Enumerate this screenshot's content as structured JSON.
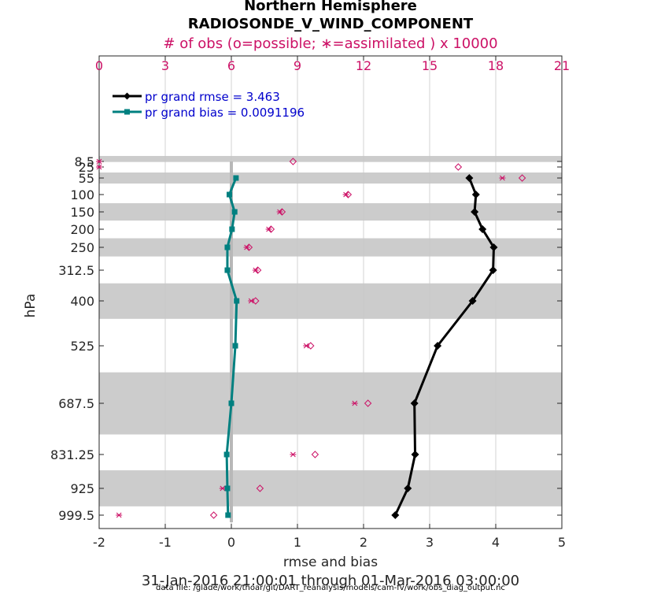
{
  "title": "Northern Hemisphere",
  "subtitle": "RADIOSONDE_V_WIND_COMPONENT",
  "top_axis_label": "# of obs (o=possible; ∗=assimilated ) x 10000",
  "xlabel": "rmse and bias",
  "ylabel": "hPa",
  "date_range": "31-Jan-2016 21:00:01 through 01-Mar-2016 03:00:00",
  "data_file": "data file: /glade/work/thoar/git/DART_reanalysis/models/cam-fv/work/obs_diag_output.nc",
  "colors": {
    "rmse": "#000000",
    "bias": "#008080",
    "obs": "#cc1166",
    "band": "#cccccc",
    "legend_text": "#0000cc"
  },
  "chart_data": {
    "type": "line",
    "title": "Northern Hemisphere",
    "subtitle": "RADIOSONDE_V_WIND_COMPONENT",
    "xlabel": "rmse and bias",
    "ylabel": "hPa",
    "xlim": [
      -2,
      5
    ],
    "xticks": [
      "-2",
      "-1",
      "0",
      "1",
      "2",
      "3",
      "4",
      "5"
    ],
    "top_xlim": [
      0,
      21
    ],
    "top_xticks": [
      "0",
      "3",
      "6",
      "9",
      "12",
      "15",
      "18",
      "21"
    ],
    "levels": [
      8.5,
      25,
      55,
      100,
      150,
      200,
      250,
      312.5,
      400,
      525,
      687.5,
      831.25,
      925,
      999.5
    ],
    "level_labels": [
      "8.5",
      "25",
      "55",
      "100",
      "150",
      "200",
      "250",
      "312.5",
      "400",
      "525",
      "687.5",
      "831.25",
      "925",
      "999.5"
    ],
    "shaded_bands_hPa": [
      [
        5,
        10
      ],
      [
        40,
        70
      ],
      [
        125,
        175
      ],
      [
        225,
        275
      ],
      [
        350,
        450
      ],
      [
        600,
        775
      ],
      [
        875,
        975
      ]
    ],
    "legend": [
      {
        "label": "pr grand rmse = 3.463",
        "color": "#000000"
      },
      {
        "label": "pr grand bias = 0.0091196",
        "color": "#008080"
      }
    ],
    "series": [
      {
        "name": "rmse",
        "color": "#000000",
        "marker": "diamond",
        "levels": [
          55,
          100,
          150,
          200,
          250,
          312.5,
          400,
          525,
          687.5,
          831.25,
          925,
          999.5
        ],
        "values": [
          3.6,
          3.7,
          3.68,
          3.8,
          3.97,
          3.96,
          3.65,
          3.12,
          2.77,
          2.78,
          2.67,
          2.48
        ]
      },
      {
        "name": "bias",
        "color": "#008080",
        "marker": "square",
        "levels": [
          55,
          100,
          150,
          200,
          250,
          312.5,
          400,
          525,
          687.5,
          831.25,
          925,
          999.5
        ],
        "values": [
          0.07,
          -0.03,
          0.05,
          0.01,
          -0.06,
          -0.06,
          0.08,
          0.06,
          0.0,
          -0.07,
          -0.06,
          -0.05
        ]
      },
      {
        "name": "obs possible (x10000)",
        "color": "#cc1166",
        "marker": "diamond-open",
        "levels": [
          8.5,
          25,
          55,
          100,
          150,
          200,
          250,
          312.5,
          400,
          525,
          687.5,
          831.25,
          925,
          999.5
        ],
        "values": [
          8.8,
          16.3,
          19.2,
          11.3,
          8.3,
          7.8,
          6.8,
          7.2,
          7.1,
          9.6,
          12.2,
          9.8,
          7.3,
          5.2
        ]
      },
      {
        "name": "obs assimilated (x10000)",
        "color": "#cc1166",
        "marker": "asterisk",
        "levels": [
          8.5,
          25,
          55,
          100,
          150,
          200,
          250,
          312.5,
          400,
          525,
          687.5,
          831.25,
          925,
          999.5
        ],
        "values": [
          0.0,
          0.0,
          18.3,
          11.2,
          8.2,
          7.7,
          6.7,
          7.1,
          6.9,
          9.4,
          11.6,
          8.8,
          5.6,
          0.9
        ]
      }
    ]
  }
}
